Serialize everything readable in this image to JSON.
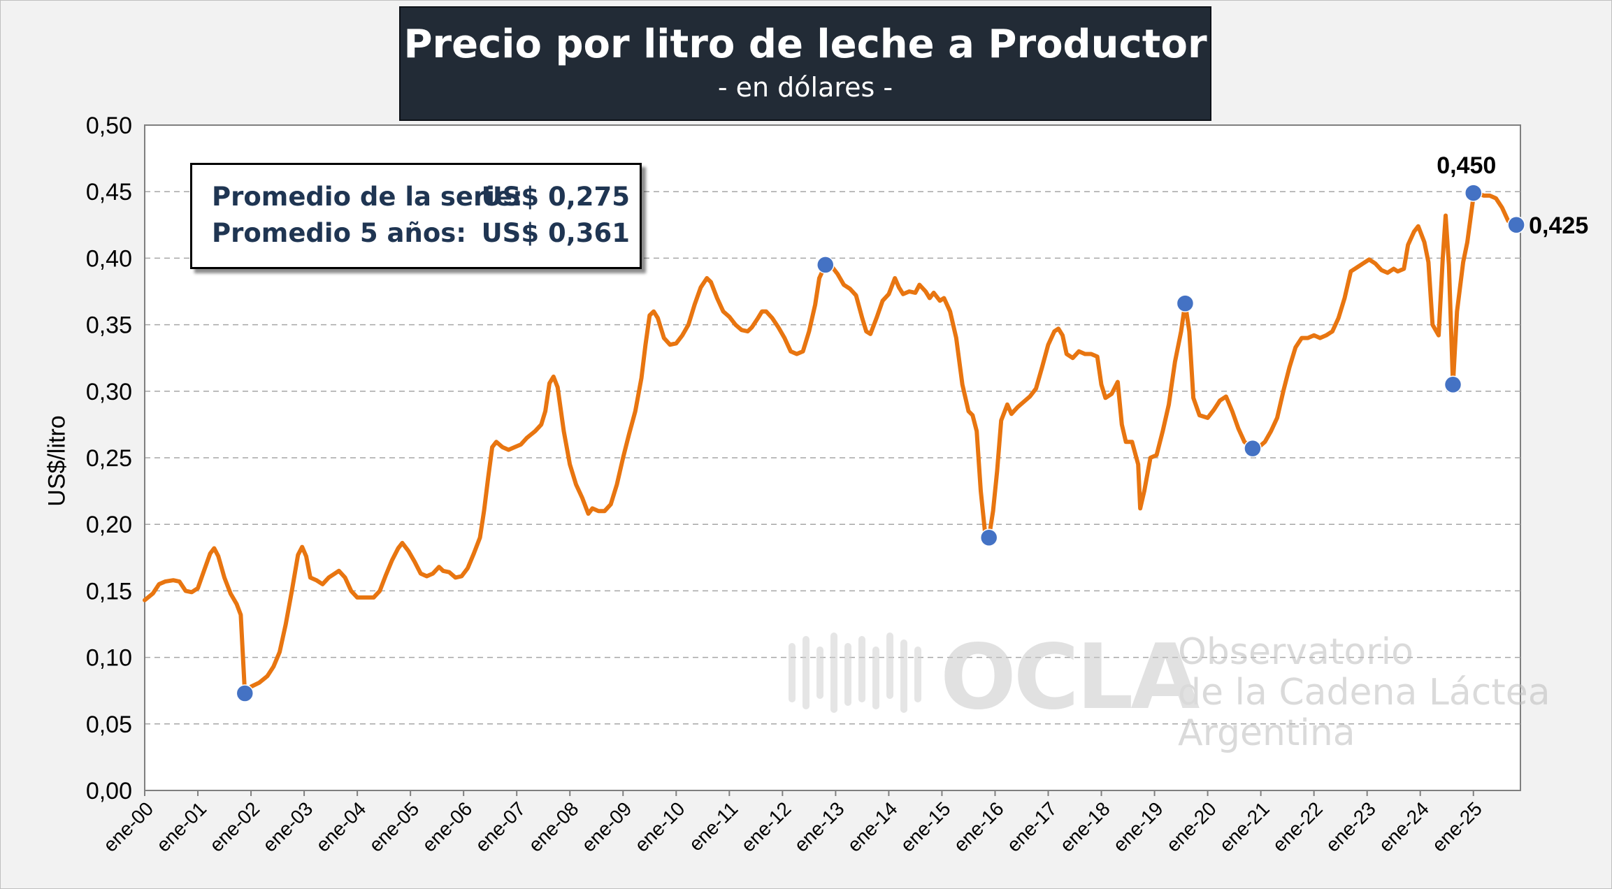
{
  "chart_data": {
    "type": "line",
    "title": "Precio por litro de leche a Productor",
    "subtitle": "- en dólares -",
    "ylabel": "US$/litro",
    "xlabel": "",
    "ylim": [
      0,
      0.5
    ],
    "yticks": [
      "0,00",
      "0,05",
      "0,10",
      "0,15",
      "0,20",
      "0,25",
      "0,30",
      "0,35",
      "0,40",
      "0,45",
      "0,50"
    ],
    "xticks": [
      "ene-00",
      "ene-01",
      "ene-02",
      "ene-03",
      "ene-04",
      "ene-05",
      "ene-06",
      "ene-07",
      "ene-08",
      "ene-09",
      "ene-10",
      "ene-11",
      "ene-12",
      "ene-13",
      "ene-14",
      "ene-15",
      "ene-16",
      "ene-17",
      "ene-18",
      "ene-19",
      "ene-20",
      "ene-21",
      "ene-22",
      "ene-23",
      "ene-24",
      "ene-25"
    ],
    "grid": "horizontal dashed",
    "series_color": "#e87510",
    "marker_color": "#4472c4",
    "x_unit": "years since Jan 2000 (monthly)",
    "series": [
      {
        "points": [
          [
            0.0,
            0.143
          ],
          [
            0.2,
            0.148
          ],
          [
            0.35,
            0.155
          ],
          [
            0.5,
            0.157
          ],
          [
            0.7,
            0.158
          ],
          [
            0.85,
            0.157
          ],
          [
            1.0,
            0.15
          ],
          [
            1.15,
            0.149
          ],
          [
            1.3,
            0.152
          ],
          [
            1.45,
            0.165
          ],
          [
            1.6,
            0.178
          ],
          [
            1.7,
            0.182
          ],
          [
            1.8,
            0.176
          ],
          [
            1.95,
            0.16
          ],
          [
            2.1,
            0.148
          ],
          [
            2.25,
            0.14
          ],
          [
            2.35,
            0.132
          ],
          [
            2.45,
            0.073
          ],
          [
            2.6,
            0.078
          ],
          [
            2.8,
            0.081
          ],
          [
            3.0,
            0.086
          ],
          [
            3.15,
            0.093
          ],
          [
            3.3,
            0.104
          ],
          [
            3.45,
            0.125
          ],
          [
            3.6,
            0.15
          ],
          [
            3.75,
            0.177
          ],
          [
            3.85,
            0.183
          ],
          [
            3.95,
            0.176
          ],
          [
            4.05,
            0.16
          ],
          [
            4.2,
            0.158
          ],
          [
            4.35,
            0.155
          ],
          [
            4.5,
            0.16
          ],
          [
            4.65,
            0.163
          ],
          [
            4.75,
            0.165
          ],
          [
            4.9,
            0.16
          ],
          [
            5.05,
            0.15
          ],
          [
            5.2,
            0.145
          ],
          [
            5.4,
            0.145
          ],
          [
            5.6,
            0.145
          ],
          [
            5.75,
            0.15
          ],
          [
            5.9,
            0.162
          ],
          [
            6.05,
            0.173
          ],
          [
            6.2,
            0.182
          ],
          [
            6.3,
            0.186
          ],
          [
            6.45,
            0.18
          ],
          [
            6.6,
            0.172
          ],
          [
            6.75,
            0.163
          ],
          [
            6.9,
            0.161
          ],
          [
            7.05,
            0.163
          ],
          [
            7.2,
            0.168
          ],
          [
            7.3,
            0.165
          ],
          [
            7.45,
            0.164
          ],
          [
            7.6,
            0.16
          ],
          [
            7.75,
            0.161
          ],
          [
            7.9,
            0.167
          ],
          [
            8.05,
            0.178
          ],
          [
            8.2,
            0.19
          ],
          [
            8.3,
            0.21
          ],
          [
            8.4,
            0.235
          ],
          [
            8.5,
            0.258
          ],
          [
            8.6,
            0.262
          ],
          [
            8.75,
            0.258
          ],
          [
            8.9,
            0.256
          ],
          [
            9.05,
            0.258
          ],
          [
            9.2,
            0.26
          ],
          [
            9.35,
            0.265
          ],
          [
            9.55,
            0.27
          ],
          [
            9.7,
            0.275
          ],
          [
            9.8,
            0.285
          ],
          [
            9.9,
            0.306
          ],
          [
            10.0,
            0.311
          ],
          [
            10.1,
            0.303
          ],
          [
            10.25,
            0.27
          ],
          [
            10.4,
            0.245
          ],
          [
            10.55,
            0.23
          ],
          [
            10.7,
            0.22
          ],
          [
            10.85,
            0.208
          ],
          [
            10.95,
            0.212
          ],
          [
            11.1,
            0.21
          ],
          [
            11.25,
            0.21
          ],
          [
            11.4,
            0.215
          ],
          [
            11.55,
            0.23
          ],
          [
            11.7,
            0.25
          ],
          [
            11.85,
            0.268
          ],
          [
            12.0,
            0.285
          ],
          [
            12.15,
            0.31
          ],
          [
            12.25,
            0.335
          ],
          [
            12.35,
            0.357
          ],
          [
            12.45,
            0.36
          ],
          [
            12.55,
            0.355
          ],
          [
            12.7,
            0.34
          ],
          [
            12.85,
            0.335
          ],
          [
            13.0,
            0.336
          ],
          [
            13.15,
            0.342
          ],
          [
            13.3,
            0.35
          ],
          [
            13.45,
            0.365
          ],
          [
            13.6,
            0.378
          ],
          [
            13.75,
            0.385
          ],
          [
            13.85,
            0.382
          ],
          [
            14.0,
            0.37
          ],
          [
            14.15,
            0.36
          ],
          [
            14.3,
            0.356
          ],
          [
            14.45,
            0.35
          ],
          [
            14.6,
            0.346
          ],
          [
            14.75,
            0.345
          ],
          [
            14.85,
            0.348
          ],
          [
            15.0,
            0.355
          ],
          [
            15.1,
            0.36
          ],
          [
            15.2,
            0.36
          ],
          [
            15.35,
            0.355
          ],
          [
            15.5,
            0.348
          ],
          [
            15.65,
            0.34
          ],
          [
            15.8,
            0.33
          ],
          [
            15.95,
            0.328
          ],
          [
            16.1,
            0.33
          ],
          [
            16.25,
            0.345
          ],
          [
            16.4,
            0.365
          ],
          [
            16.5,
            0.385
          ],
          [
            16.65,
            0.395
          ],
          [
            16.8,
            0.394
          ],
          [
            16.95,
            0.388
          ],
          [
            17.1,
            0.38
          ],
          [
            17.25,
            0.377
          ],
          [
            17.4,
            0.372
          ],
          [
            17.55,
            0.355
          ],
          [
            17.65,
            0.345
          ],
          [
            17.75,
            0.343
          ],
          [
            17.9,
            0.355
          ],
          [
            18.05,
            0.368
          ],
          [
            18.2,
            0.373
          ],
          [
            18.35,
            0.385
          ],
          [
            18.45,
            0.378
          ],
          [
            18.55,
            0.373
          ],
          [
            18.7,
            0.375
          ],
          [
            18.85,
            0.374
          ],
          [
            18.95,
            0.38
          ],
          [
            19.1,
            0.375
          ],
          [
            19.2,
            0.37
          ],
          [
            19.3,
            0.374
          ],
          [
            19.45,
            0.368
          ],
          [
            19.55,
            0.37
          ],
          [
            19.7,
            0.36
          ],
          [
            19.85,
            0.34
          ],
          [
            20.0,
            0.305
          ],
          [
            20.15,
            0.285
          ],
          [
            20.25,
            0.282
          ],
          [
            20.35,
            0.27
          ],
          [
            20.45,
            0.225
          ],
          [
            20.55,
            0.195
          ],
          [
            20.65,
            0.19
          ],
          [
            20.75,
            0.21
          ],
          [
            20.85,
            0.24
          ],
          [
            20.95,
            0.278
          ],
          [
            21.1,
            0.29
          ],
          [
            21.2,
            0.283
          ],
          [
            21.35,
            0.288
          ],
          [
            21.5,
            0.292
          ],
          [
            21.65,
            0.296
          ],
          [
            21.8,
            0.302
          ],
          [
            21.95,
            0.318
          ],
          [
            22.1,
            0.335
          ],
          [
            22.25,
            0.345
          ],
          [
            22.35,
            0.347
          ],
          [
            22.45,
            0.342
          ],
          [
            22.55,
            0.328
          ],
          [
            22.7,
            0.325
          ],
          [
            22.85,
            0.33
          ],
          [
            23.0,
            0.328
          ],
          [
            23.15,
            0.328
          ],
          [
            23.3,
            0.326
          ],
          [
            23.4,
            0.305
          ],
          [
            23.5,
            0.295
          ],
          [
            23.65,
            0.298
          ],
          [
            23.8,
            0.307
          ],
          [
            23.9,
            0.275
          ],
          [
            24.0,
            0.262
          ],
          [
            24.15,
            0.262
          ],
          [
            24.3,
            0.245
          ],
          [
            24.35,
            0.212
          ],
          [
            24.45,
            0.225
          ],
          [
            24.6,
            0.25
          ],
          [
            24.75,
            0.252
          ],
          [
            24.9,
            0.27
          ],
          [
            25.05,
            0.29
          ],
          [
            25.2,
            0.322
          ],
          [
            25.35,
            0.345
          ],
          [
            25.45,
            0.366
          ],
          [
            25.55,
            0.345
          ],
          [
            25.65,
            0.295
          ],
          [
            25.8,
            0.282
          ],
          [
            26.0,
            0.28
          ],
          [
            26.15,
            0.286
          ],
          [
            26.3,
            0.293
          ],
          [
            26.45,
            0.296
          ],
          [
            26.6,
            0.285
          ],
          [
            26.75,
            0.272
          ],
          [
            26.9,
            0.262
          ],
          [
            27.1,
            0.257
          ],
          [
            27.25,
            0.258
          ],
          [
            27.4,
            0.262
          ],
          [
            27.55,
            0.27
          ],
          [
            27.7,
            0.28
          ],
          [
            27.85,
            0.3
          ],
          [
            28.0,
            0.318
          ],
          [
            28.15,
            0.333
          ],
          [
            28.3,
            0.34
          ],
          [
            28.45,
            0.34
          ],
          [
            28.6,
            0.342
          ],
          [
            28.75,
            0.34
          ],
          [
            28.9,
            0.342
          ],
          [
            29.05,
            0.345
          ],
          [
            29.2,
            0.355
          ],
          [
            29.35,
            0.37
          ],
          [
            29.5,
            0.39
          ],
          [
            29.65,
            0.393
          ],
          [
            29.8,
            0.396
          ],
          [
            29.95,
            0.399
          ],
          [
            30.1,
            0.396
          ],
          [
            30.25,
            0.391
          ],
          [
            30.4,
            0.389
          ],
          [
            30.55,
            0.392
          ],
          [
            30.65,
            0.39
          ],
          [
            30.8,
            0.392
          ],
          [
            30.9,
            0.41
          ],
          [
            31.05,
            0.42
          ],
          [
            31.15,
            0.424
          ],
          [
            31.3,
            0.412
          ],
          [
            31.4,
            0.397
          ],
          [
            31.5,
            0.35
          ],
          [
            31.65,
            0.342
          ],
          [
            31.75,
            0.4
          ],
          [
            31.82,
            0.432
          ],
          [
            31.9,
            0.395
          ],
          [
            32.0,
            0.305
          ],
          [
            32.1,
            0.36
          ],
          [
            32.25,
            0.397
          ],
          [
            32.35,
            0.412
          ],
          [
            32.5,
            0.446
          ],
          [
            32.6,
            0.449
          ],
          [
            32.75,
            0.447
          ],
          [
            32.9,
            0.447
          ],
          [
            33.05,
            0.445
          ],
          [
            33.2,
            0.438
          ],
          [
            33.35,
            0.428
          ],
          [
            33.55,
            0.425
          ]
        ],
        "highlights": [
          [
            2.45,
            0.073
          ],
          [
            16.65,
            0.395
          ],
          [
            20.65,
            0.19
          ],
          [
            25.45,
            0.366
          ],
          [
            27.1,
            0.257
          ],
          [
            32.0,
            0.305
          ],
          [
            32.5,
            0.449
          ],
          [
            33.55,
            0.425
          ]
        ]
      }
    ],
    "annotations": [
      {
        "text": "0,450",
        "x": 32.5,
        "y": 0.449
      },
      {
        "text": "0,425",
        "x": 33.55,
        "y": 0.425
      }
    ]
  },
  "stats": {
    "mean_label": "Promedio de la serie:",
    "mean_value": "US$ 0,275",
    "avg5_label": "Promedio 5 años:",
    "avg5_value": "US$ 0,361"
  },
  "watermark": {
    "name": "OCLA",
    "line1": "Observatorio",
    "line2": "de la Cadena Láctea",
    "line3": "Argentina"
  }
}
